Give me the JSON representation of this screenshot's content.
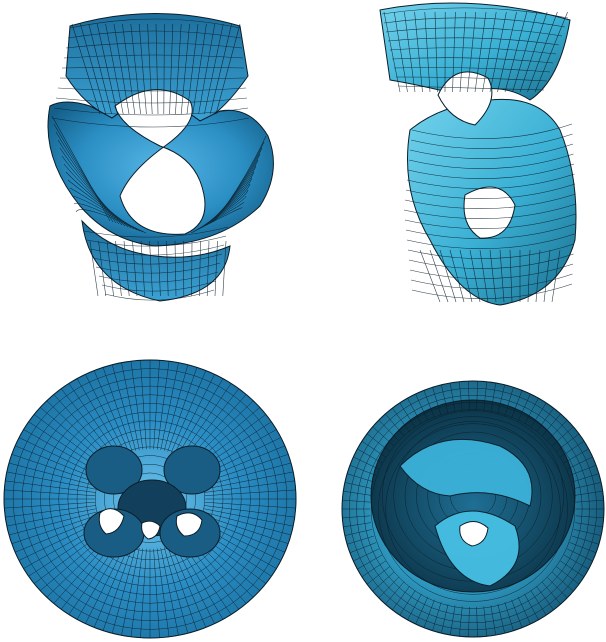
{
  "figure": {
    "panels": [
      {
        "name": "panel-top-left",
        "surface_color": "#2b8fc4",
        "highlight_color": "#55b4e4",
        "shadow_color": "#0e3f5c"
      },
      {
        "name": "panel-top-right",
        "surface_color": "#3ab0d4",
        "highlight_color": "#73d2ec",
        "shadow_color": "#114d63"
      },
      {
        "name": "panel-bottom-left",
        "surface_color": "#2a8dc4",
        "highlight_color": "#72c7ee",
        "shadow_color": "#0a2f46"
      },
      {
        "name": "panel-bottom-right",
        "surface_color": "#2f9cc4",
        "highlight_color": "#6fd0ee",
        "shadow_color": "#0b3346"
      }
    ],
    "mesh_line_color": "#0b1e2a",
    "background_color": "#ffffff"
  }
}
